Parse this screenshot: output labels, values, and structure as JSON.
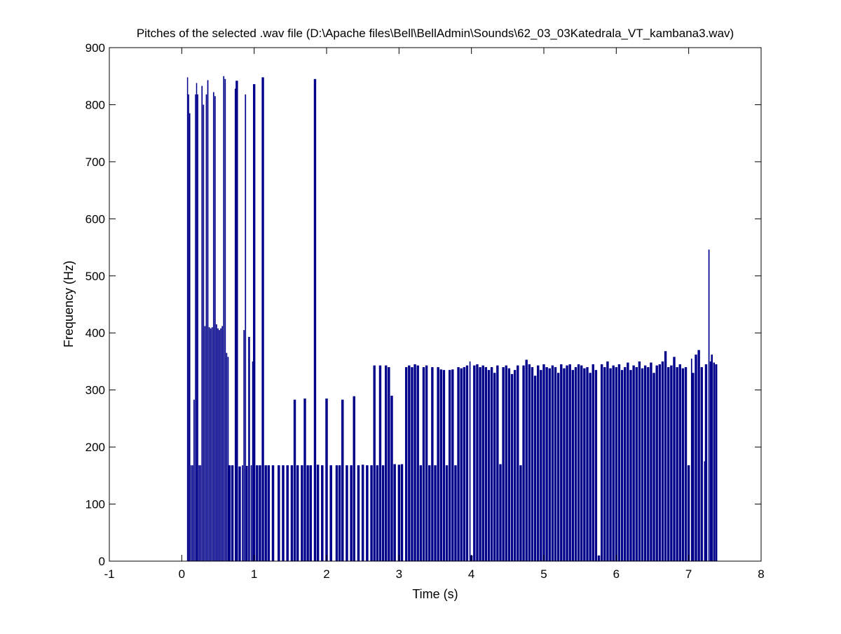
{
  "chart_data": {
    "type": "bar",
    "title": "Pitches of the selected .wav file (D:\\Apache files\\Bell\\BellAdmin\\Sounds\\62_03_03Katedrala_VT_kambana3.wav)",
    "xlabel": "Time (s)",
    "ylabel": "Frequency (Hz)",
    "xlim": [
      -1,
      8
    ],
    "ylim": [
      0,
      900
    ],
    "xticks": [
      "-1",
      "0",
      "1",
      "2",
      "3",
      "4",
      "5",
      "6",
      "7",
      "8"
    ],
    "yticks": [
      "0",
      "100",
      "200",
      "300",
      "400",
      "500",
      "600",
      "700",
      "800",
      "900"
    ],
    "grid": false,
    "bar_color": "#00008b",
    "series": [
      {
        "values": [
          [
            0.08,
            848
          ],
          [
            0.095,
            818
          ],
          [
            0.11,
            785
          ],
          [
            0.13,
            168
          ],
          [
            0.15,
            168
          ],
          [
            0.17,
            283
          ],
          [
            0.19,
            818
          ],
          [
            0.205,
            838
          ],
          [
            0.22,
            818
          ],
          [
            0.24,
            168
          ],
          [
            0.26,
            168
          ],
          [
            0.28,
            833
          ],
          [
            0.3,
            800
          ],
          [
            0.32,
            412
          ],
          [
            0.34,
            818
          ],
          [
            0.36,
            843
          ],
          [
            0.38,
            410
          ],
          [
            0.4,
            408
          ],
          [
            0.42,
            410
          ],
          [
            0.44,
            822
          ],
          [
            0.46,
            815
          ],
          [
            0.48,
            415
          ],
          [
            0.5,
            408
          ],
          [
            0.52,
            405
          ],
          [
            0.54,
            408
          ],
          [
            0.56,
            412
          ],
          [
            0.58,
            850
          ],
          [
            0.6,
            845
          ],
          [
            0.62,
            365
          ],
          [
            0.64,
            358
          ],
          [
            0.66,
            168
          ],
          [
            0.7,
            168
          ],
          [
            0.74,
            828
          ],
          [
            0.76,
            842
          ],
          [
            0.8,
            166
          ],
          [
            0.84,
            168
          ],
          [
            0.86,
            405
          ],
          [
            0.88,
            818
          ],
          [
            0.9,
            167
          ],
          [
            0.93,
            393
          ],
          [
            0.96,
            168
          ],
          [
            0.98,
            350
          ],
          [
            1.0,
            836
          ],
          [
            1.04,
            168
          ],
          [
            1.08,
            168
          ],
          [
            1.12,
            848
          ],
          [
            1.16,
            168
          ],
          [
            1.2,
            168
          ],
          [
            1.26,
            168
          ],
          [
            1.34,
            168
          ],
          [
            1.4,
            168
          ],
          [
            1.46,
            168
          ],
          [
            1.52,
            168
          ],
          [
            1.56,
            283
          ],
          [
            1.6,
            168
          ],
          [
            1.66,
            168
          ],
          [
            1.7,
            285
          ],
          [
            1.74,
            168
          ],
          [
            1.78,
            168
          ],
          [
            1.84,
            845
          ],
          [
            1.88,
            169
          ],
          [
            1.94,
            168
          ],
          [
            2.0,
            285
          ],
          [
            2.06,
            168
          ],
          [
            2.14,
            168
          ],
          [
            2.18,
            168
          ],
          [
            2.22,
            283
          ],
          [
            2.28,
            168
          ],
          [
            2.34,
            168
          ],
          [
            2.38,
            289
          ],
          [
            2.44,
            168
          ],
          [
            2.5,
            169
          ],
          [
            2.56,
            168
          ],
          [
            2.62,
            168
          ],
          [
            2.66,
            343
          ],
          [
            2.7,
            168
          ],
          [
            2.74,
            343
          ],
          [
            2.78,
            168
          ],
          [
            2.82,
            343
          ],
          [
            2.86,
            340
          ],
          [
            2.9,
            290
          ],
          [
            2.94,
            170
          ],
          [
            3.0,
            169
          ],
          [
            3.04,
            170
          ],
          [
            3.1,
            340
          ],
          [
            3.14,
            343
          ],
          [
            3.18,
            340
          ],
          [
            3.22,
            345
          ],
          [
            3.26,
            343
          ],
          [
            3.3,
            168
          ],
          [
            3.34,
            340
          ],
          [
            3.38,
            343
          ],
          [
            3.42,
            168
          ],
          [
            3.46,
            340
          ],
          [
            3.5,
            168
          ],
          [
            3.54,
            340
          ],
          [
            3.58,
            336
          ],
          [
            3.62,
            335
          ],
          [
            3.66,
            168
          ],
          [
            3.7,
            335
          ],
          [
            3.74,
            336
          ],
          [
            3.78,
            168
          ],
          [
            3.82,
            340
          ],
          [
            3.86,
            338
          ],
          [
            3.9,
            340
          ],
          [
            3.94,
            343
          ],
          [
            3.98,
            350
          ],
          [
            4.0,
            10
          ],
          [
            4.04,
            343
          ],
          [
            4.08,
            345
          ],
          [
            4.12,
            340
          ],
          [
            4.16,
            343
          ],
          [
            4.2,
            340
          ],
          [
            4.24,
            335
          ],
          [
            4.28,
            340
          ],
          [
            4.32,
            330
          ],
          [
            4.36,
            343
          ],
          [
            4.4,
            170
          ],
          [
            4.44,
            340
          ],
          [
            4.48,
            343
          ],
          [
            4.52,
            338
          ],
          [
            4.56,
            328
          ],
          [
            4.6,
            335
          ],
          [
            4.64,
            343
          ],
          [
            4.68,
            168
          ],
          [
            4.72,
            343
          ],
          [
            4.76,
            353
          ],
          [
            4.8,
            345
          ],
          [
            4.84,
            340
          ],
          [
            4.88,
            325
          ],
          [
            4.92,
            343
          ],
          [
            4.96,
            335
          ],
          [
            5.0,
            345
          ],
          [
            5.04,
            340
          ],
          [
            5.08,
            338
          ],
          [
            5.12,
            343
          ],
          [
            5.16,
            340
          ],
          [
            5.2,
            330
          ],
          [
            5.24,
            345
          ],
          [
            5.28,
            338
          ],
          [
            5.32,
            343
          ],
          [
            5.36,
            345
          ],
          [
            5.4,
            335
          ],
          [
            5.44,
            340
          ],
          [
            5.48,
            345
          ],
          [
            5.52,
            343
          ],
          [
            5.56,
            338
          ],
          [
            5.6,
            340
          ],
          [
            5.64,
            330
          ],
          [
            5.68,
            345
          ],
          [
            5.72,
            335
          ],
          [
            5.76,
            10
          ],
          [
            5.8,
            345
          ],
          [
            5.84,
            340
          ],
          [
            5.88,
            350
          ],
          [
            5.92,
            338
          ],
          [
            5.96,
            343
          ],
          [
            6.0,
            340
          ],
          [
            6.04,
            345
          ],
          [
            6.08,
            335
          ],
          [
            6.12,
            340
          ],
          [
            6.16,
            348
          ],
          [
            6.2,
            335
          ],
          [
            6.24,
            343
          ],
          [
            6.28,
            340
          ],
          [
            6.32,
            350
          ],
          [
            6.36,
            338
          ],
          [
            6.4,
            343
          ],
          [
            6.44,
            340
          ],
          [
            6.48,
            348
          ],
          [
            6.52,
            330
          ],
          [
            6.56,
            343
          ],
          [
            6.6,
            345
          ],
          [
            6.64,
            350
          ],
          [
            6.68,
            368
          ],
          [
            6.72,
            340
          ],
          [
            6.76,
            343
          ],
          [
            6.8,
            358
          ],
          [
            6.84,
            340
          ],
          [
            6.88,
            345
          ],
          [
            6.92,
            338
          ],
          [
            6.96,
            340
          ],
          [
            7.0,
            168
          ],
          [
            7.04,
            355
          ],
          [
            7.06,
            330
          ],
          [
            7.1,
            362
          ],
          [
            7.14,
            370
          ],
          [
            7.18,
            340
          ],
          [
            7.22,
            175
          ],
          [
            7.24,
            345
          ],
          [
            7.28,
            546
          ],
          [
            7.3,
            350
          ],
          [
            7.32,
            362
          ],
          [
            7.35,
            348
          ],
          [
            7.38,
            345
          ]
        ]
      }
    ]
  }
}
